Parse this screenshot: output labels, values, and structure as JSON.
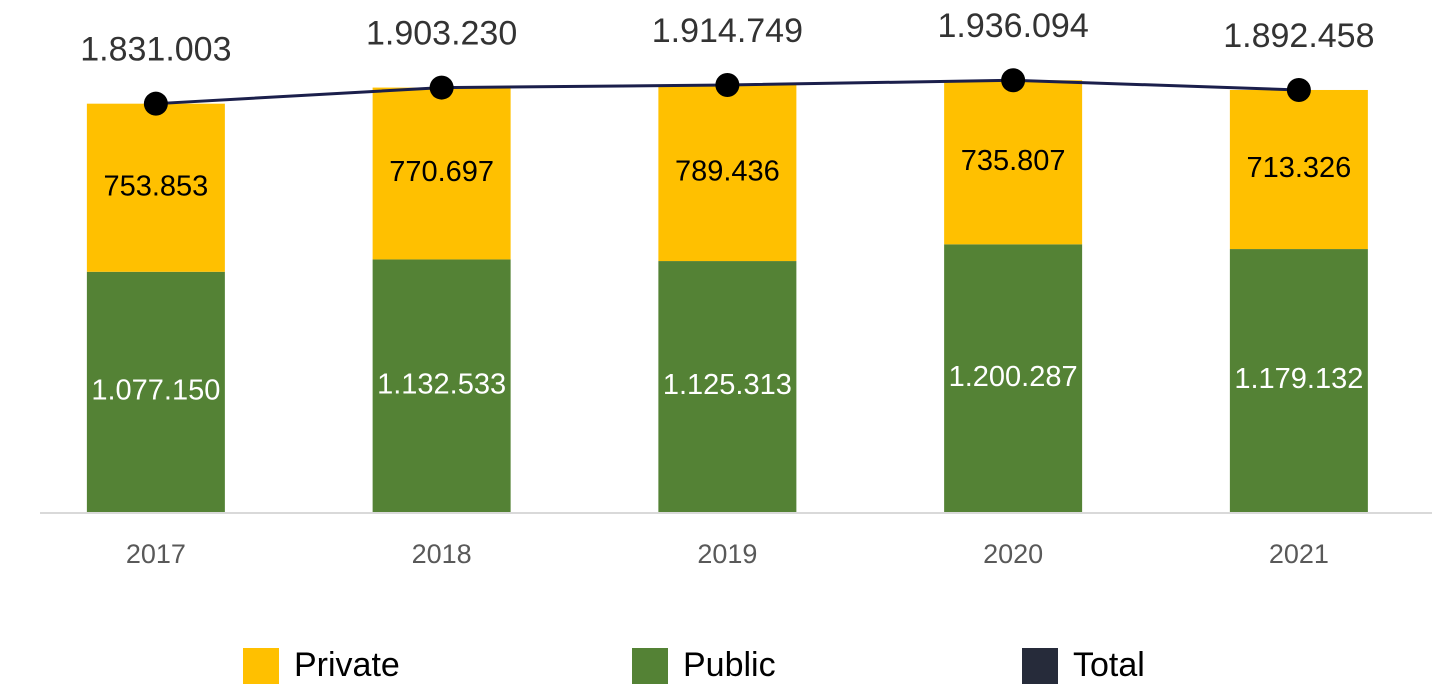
{
  "chart_data": {
    "type": "bar",
    "stacked": true,
    "categories": [
      "2017",
      "2018",
      "2019",
      "2020",
      "2021"
    ],
    "ylim": [
      0,
      2000000
    ],
    "series": [
      {
        "name": "Private",
        "type": "bar",
        "color": "#ffc000",
        "label_color": "#000000",
        "values": [
          753853,
          770697,
          789436,
          735807,
          713326
        ],
        "value_labels": [
          "753.853",
          "770.697",
          "789.436",
          "735.807",
          "713.326"
        ]
      },
      {
        "name": "Public",
        "type": "bar",
        "color": "#548235",
        "label_color": "#ffffff",
        "values": [
          1077150,
          1132533,
          1125313,
          1200287,
          1179132
        ],
        "value_labels": [
          "1.077.150",
          "1.132.533",
          "1.125.313",
          "1.200.287",
          "1.179.132"
        ]
      },
      {
        "name": "Total",
        "type": "line",
        "color": "#1b1f4b",
        "legend_color": "#262b3a",
        "marker_color": "#000000",
        "values": [
          1831003,
          1903230,
          1914749,
          1936094,
          1892458
        ],
        "value_labels": [
          "1.831.003",
          "1.903.230",
          "1.914.749",
          "1.936.094",
          "1.892.458"
        ]
      }
    ]
  }
}
